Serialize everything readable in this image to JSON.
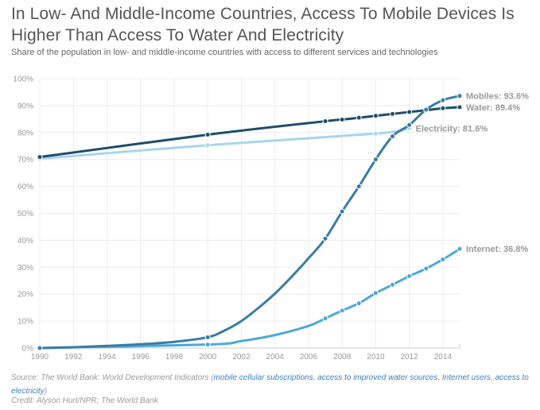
{
  "header": {
    "title": "In Low- And Middle-Income Countries, Access To Mobile Devices Is Higher Than Access To Water And Electricity",
    "subtitle": "Share of the population in low- and middle-income countries with access to different services and technologies"
  },
  "footer": {
    "source_prefix": "Source: The World Bank: World Development Indicators (",
    "links": [
      "mobile cellular subscriptions",
      "access to improved water sources",
      "Internet users",
      "access to electricity"
    ],
    "separator": ", ",
    "source_suffix": ")",
    "credit": "Credit: Alyson Hurt/NPR; The World Bank"
  },
  "chart_data": {
    "type": "line",
    "title": "In Low- And Middle-Income Countries, Access To Mobile Devices Is Higher Than Access To Water And Electricity",
    "subtitle": "Share of the population in low- and middle-income countries with access to different services and technologies",
    "xlabel": "",
    "ylabel": "",
    "xlim": [
      1990,
      2015
    ],
    "ylim": [
      0,
      100
    ],
    "x_ticks": [
      1990,
      1992,
      1994,
      1996,
      1998,
      2000,
      2002,
      2004,
      2006,
      2008,
      2010,
      2012,
      2014
    ],
    "y_ticks": [
      0,
      10,
      20,
      30,
      40,
      50,
      60,
      70,
      80,
      90,
      100
    ],
    "y_tick_labels": [
      "0%",
      "10%",
      "20%",
      "30%",
      "40%",
      "50%",
      "60%",
      "70%",
      "80%",
      "90%",
      "100%"
    ],
    "grid": true,
    "legend": "inline end labels (right)",
    "series": [
      {
        "name": "Mobiles",
        "label": "Mobiles: 93.6%",
        "color": "#3a7ca5",
        "x": [
          1990,
          2000,
          2007,
          2008,
          2009,
          2010,
          2011,
          2012,
          2013,
          2014,
          2015
        ],
        "values": [
          0.0,
          4.0,
          40.6,
          50.7,
          60.0,
          70.0,
          78.6,
          82.8,
          88.5,
          92.0,
          93.6
        ],
        "curve_hint": [
          [
            1992,
            0.3
          ],
          [
            1994,
            0.8
          ],
          [
            1996,
            1.4
          ],
          [
            1998,
            2.3
          ],
          [
            2001,
            6.5
          ],
          [
            2002,
            10.0
          ],
          [
            2003,
            14.8
          ],
          [
            2004,
            20.2
          ],
          [
            2005,
            26.5
          ],
          [
            2006,
            33.3
          ]
        ]
      },
      {
        "name": "Water",
        "label": "Water: 89.4%",
        "color": "#1f4e6b",
        "x": [
          1990,
          2000,
          2007,
          2008,
          2009,
          2010,
          2011,
          2012,
          2013,
          2014,
          2015
        ],
        "values": [
          70.9,
          79.2,
          84.2,
          84.8,
          85.5,
          86.2,
          86.9,
          87.6,
          88.3,
          89.0,
          89.4
        ]
      },
      {
        "name": "Electricity",
        "label": "Electricity: 81.6%",
        "color": "#a8d4ee",
        "x": [
          1990,
          2000,
          2010,
          2012
        ],
        "values": [
          70.3,
          75.3,
          79.6,
          81.6
        ]
      },
      {
        "name": "Internet",
        "label": "Internet: 36.8%",
        "color": "#4ba8dc",
        "x": [
          1990,
          2000,
          2007,
          2008,
          2009,
          2010,
          2011,
          2012,
          2013,
          2014,
          2015
        ],
        "values": [
          0.0,
          1.3,
          11.0,
          13.9,
          16.6,
          20.4,
          23.5,
          26.7,
          29.5,
          32.9,
          36.8
        ],
        "curve_hint": [
          [
            2002,
            2.6
          ],
          [
            2004,
            4.8
          ],
          [
            2006,
            8.2
          ]
        ]
      }
    ]
  }
}
